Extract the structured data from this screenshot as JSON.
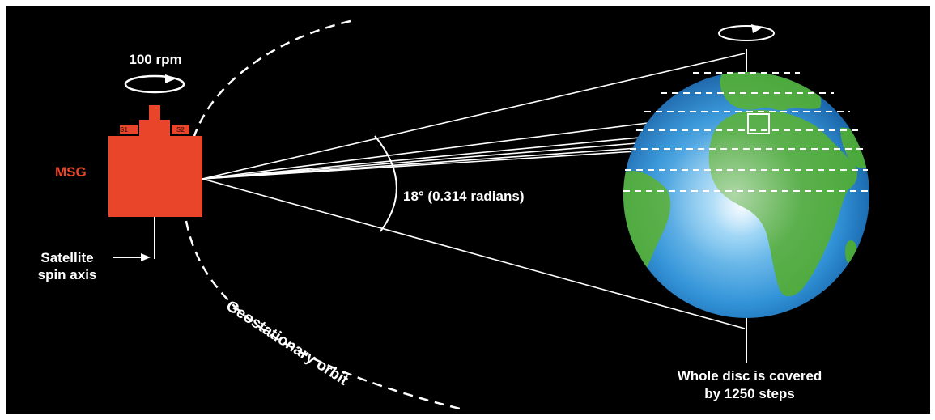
{
  "labels": {
    "spin_rate": "100 rpm",
    "satellite_name": "MSG",
    "spin_axis_line1": "Satellite",
    "spin_axis_line2": "spin axis",
    "angle": "18° (0.314 radians)",
    "orbit": "Geostationary orbit",
    "coverage_line1": "Whole disc is covered",
    "coverage_line2": "by 1250 steps",
    "port_left": "S1",
    "port_right": "S2"
  },
  "colors": {
    "background": "#000000",
    "satellite": "#e8452a",
    "satellite_label": "#e8452a",
    "ocean": "#2a8fd6",
    "land": "#4aa83a",
    "lines": "#ffffff"
  }
}
